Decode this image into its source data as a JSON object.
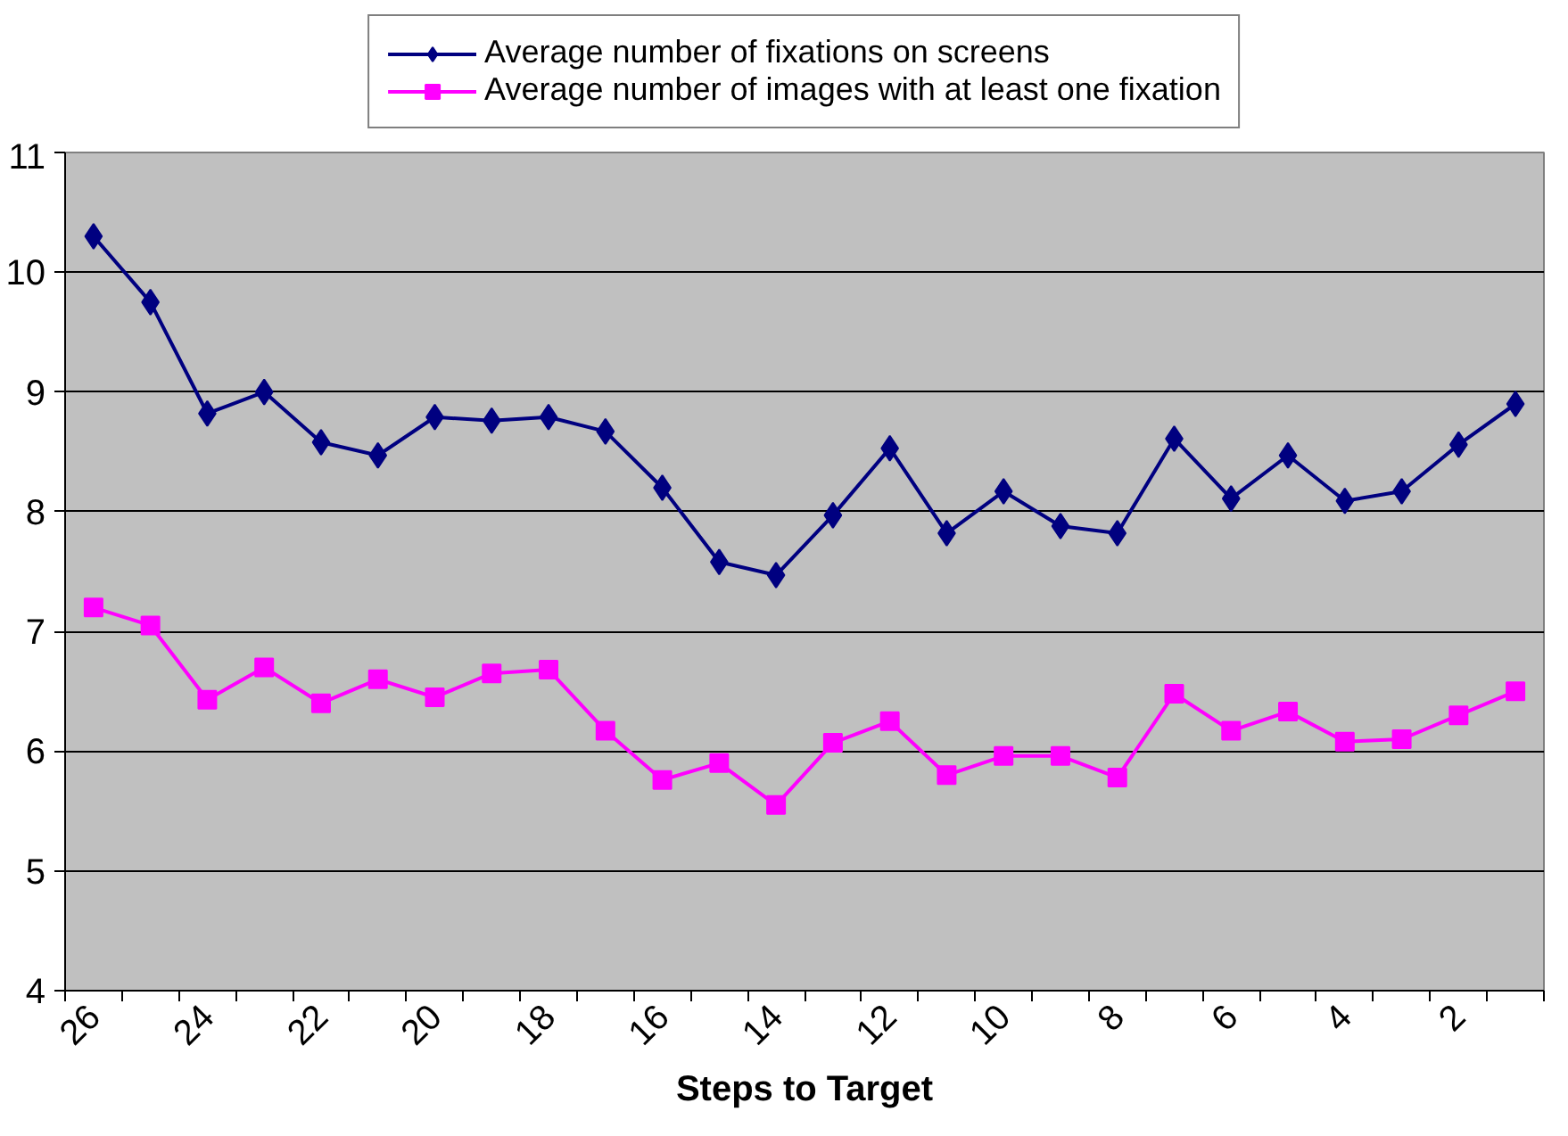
{
  "chart_data": {
    "type": "line",
    "xlabel": "Steps to Target",
    "categories": [
      "26",
      null,
      "24",
      null,
      "22",
      null,
      "20",
      null,
      "18",
      null,
      "16",
      null,
      "14",
      null,
      "12",
      null,
      "10",
      null,
      "8",
      null,
      "6",
      null,
      "4",
      null,
      "2",
      null
    ],
    "series": [
      {
        "name": "Average number of fixations on screens",
        "color": "#000080",
        "marker": "diamond",
        "values": [
          10.3,
          9.75,
          8.82,
          9.0,
          8.58,
          8.47,
          8.79,
          8.76,
          8.79,
          8.67,
          8.2,
          7.58,
          7.47,
          7.97,
          8.53,
          7.82,
          8.17,
          7.88,
          7.82,
          8.61,
          8.11,
          8.47,
          8.09,
          8.17,
          8.56,
          8.9
        ]
      },
      {
        "name": "Average number of images with at least one fixation",
        "color": "#ff00ff",
        "marker": "square",
        "values": [
          7.2,
          7.05,
          6.43,
          6.7,
          6.4,
          6.6,
          6.45,
          6.65,
          6.68,
          6.17,
          5.76,
          5.9,
          5.55,
          6.07,
          6.25,
          5.8,
          5.96,
          5.96,
          5.78,
          6.48,
          6.17,
          6.33,
          6.08,
          6.1,
          6.3,
          6.5
        ]
      }
    ],
    "ylim": [
      4,
      11
    ],
    "yticks": [
      4,
      5,
      6,
      7,
      8,
      9,
      10,
      11
    ],
    "grid": "y",
    "legend": "top",
    "line_style": "solid"
  }
}
